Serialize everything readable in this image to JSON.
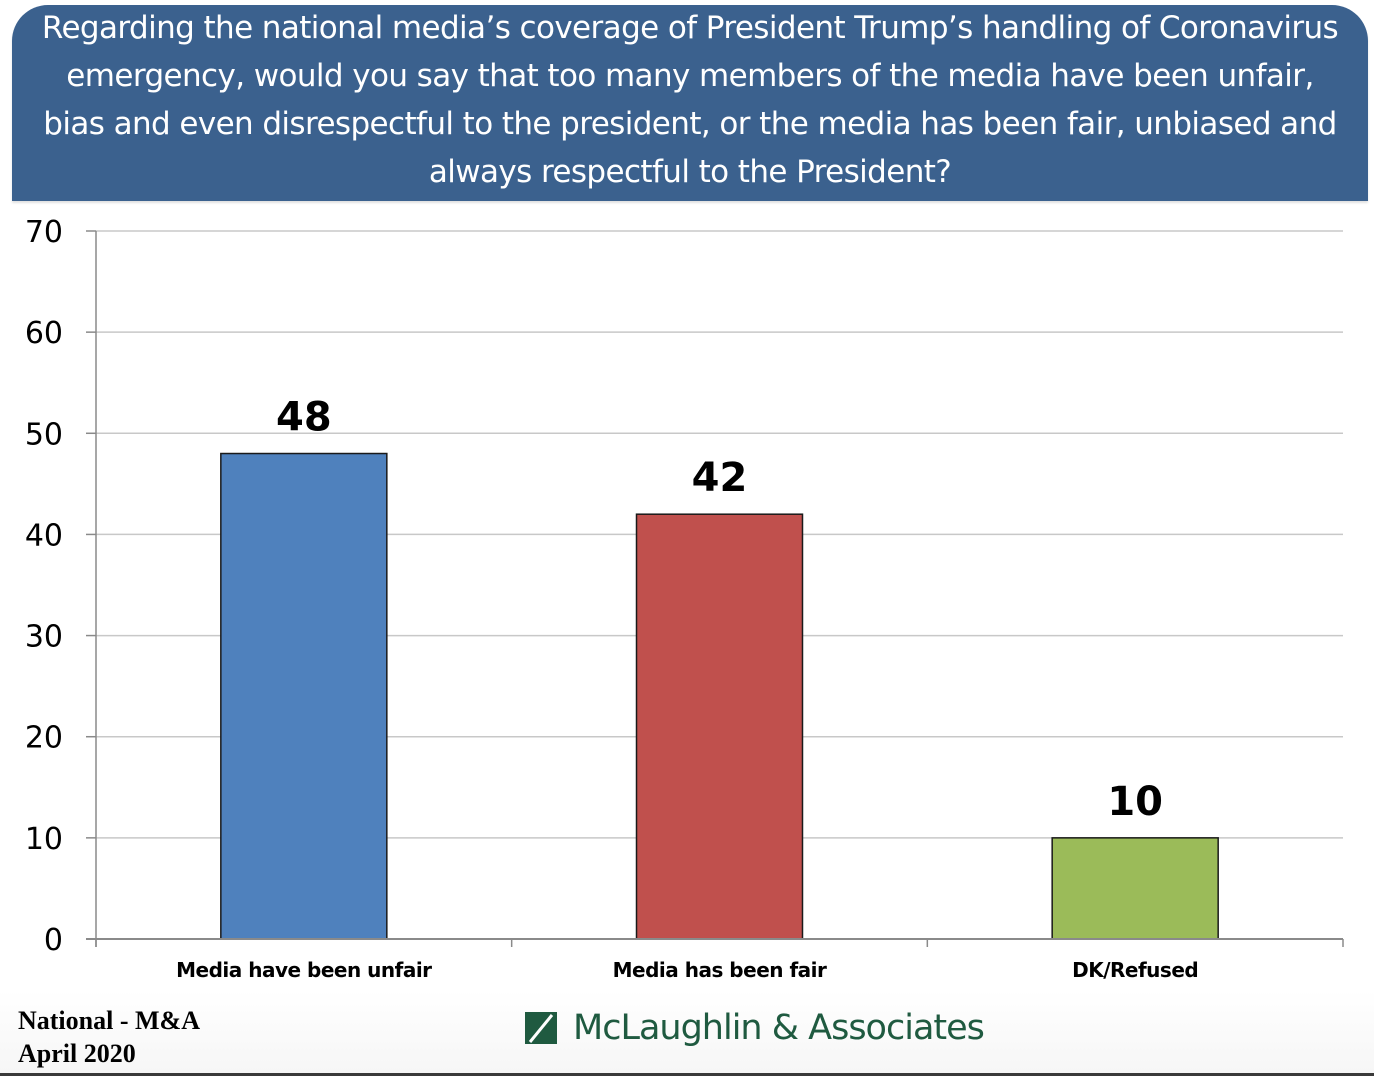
{
  "header": {
    "title": "Regarding the national media’s coverage of President Trump’s handling of Coronavirus emergency, would you say that too many members of the media have been unfair, bias and even disrespectful to the president, or the media has been fair, unbiased and always respectful to the President?"
  },
  "chart_data": {
    "type": "bar",
    "title": "Regarding the national media’s coverage of President Trump’s handling of Coronavirus emergency, would you say that too many members of the media have been unfair, bias and even disrespectful to the president, or the media has been fair, unbiased and always respectful to the President?",
    "categories": [
      "Media have been unfair",
      "Media has been fair",
      "DK/Refused"
    ],
    "values": [
      48,
      42,
      10
    ],
    "data_labels": [
      "48",
      "42",
      "10"
    ],
    "colors": [
      "#4f81bd",
      "#c0504d",
      "#9bbb59"
    ],
    "xlabel": "",
    "ylabel": "",
    "ylim": [
      0,
      70
    ],
    "yticks": [
      0,
      10,
      20,
      30,
      40,
      50,
      60,
      70
    ],
    "grid": true,
    "legend": "none"
  },
  "footer": {
    "source_line1": "National - M&A",
    "source_line2": "April 2020",
    "logo_text": "McLaughlin & Associates",
    "logo_color": "#1f5a40"
  }
}
